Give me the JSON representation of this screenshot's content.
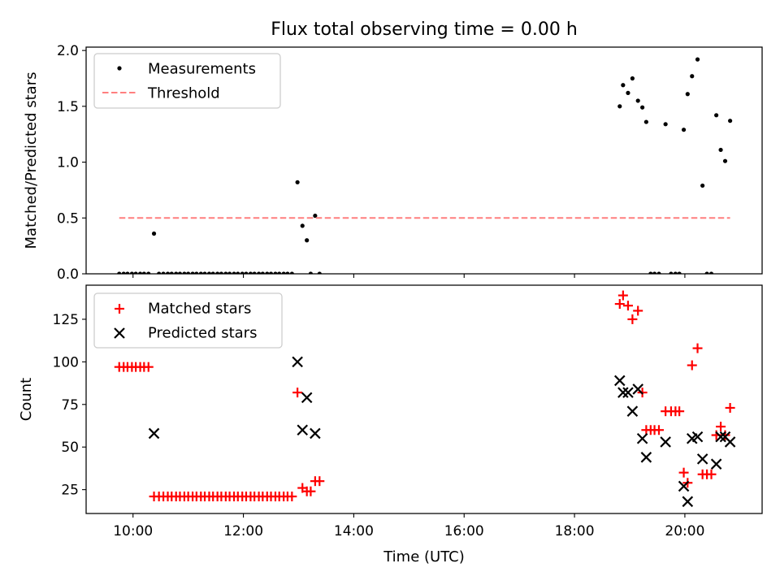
{
  "figure": {
    "title": "Flux total observing time = 0.00 h"
  },
  "chart_data": [
    {
      "type": "scatter",
      "ylabel": "Matched/Predicted stars",
      "xlabel": "",
      "xlim": [
        9.15,
        21.4
      ],
      "ylim": [
        0,
        2.03
      ],
      "yticks": [
        0.0,
        0.5,
        1.0,
        1.5,
        2.0
      ],
      "ytick_labels": [
        "0.0",
        "0.5",
        "1.0",
        "1.5",
        "2.0"
      ],
      "xticks": [
        10,
        12,
        14,
        16,
        18,
        20
      ],
      "legend": {
        "position": "top-left",
        "entries": [
          "Measurements",
          "Threshold"
        ]
      },
      "series": [
        {
          "name": "Measurements",
          "marker": "dot",
          "color": "#000000",
          "points": [
            [
              9.75,
              0
            ],
            [
              9.83,
              0
            ],
            [
              9.9,
              0
            ],
            [
              9.98,
              0
            ],
            [
              10.05,
              0
            ],
            [
              10.13,
              0
            ],
            [
              10.2,
              0
            ],
            [
              10.28,
              0
            ],
            [
              10.38,
              0.36
            ],
            [
              10.47,
              0
            ],
            [
              10.55,
              0
            ],
            [
              10.63,
              0
            ],
            [
              10.7,
              0
            ],
            [
              10.78,
              0
            ],
            [
              10.85,
              0
            ],
            [
              10.93,
              0
            ],
            [
              11.0,
              0
            ],
            [
              11.08,
              0
            ],
            [
              11.15,
              0
            ],
            [
              11.23,
              0
            ],
            [
              11.3,
              0
            ],
            [
              11.38,
              0
            ],
            [
              11.45,
              0
            ],
            [
              11.53,
              0
            ],
            [
              11.6,
              0
            ],
            [
              11.68,
              0
            ],
            [
              11.75,
              0
            ],
            [
              11.83,
              0
            ],
            [
              11.9,
              0
            ],
            [
              11.98,
              0
            ],
            [
              12.05,
              0
            ],
            [
              12.13,
              0
            ],
            [
              12.2,
              0
            ],
            [
              12.28,
              0
            ],
            [
              12.35,
              0
            ],
            [
              12.43,
              0
            ],
            [
              12.5,
              0
            ],
            [
              12.58,
              0
            ],
            [
              12.65,
              0
            ],
            [
              12.73,
              0
            ],
            [
              12.8,
              0
            ],
            [
              12.88,
              0
            ],
            [
              12.98,
              0.82
            ],
            [
              13.07,
              0.43
            ],
            [
              13.15,
              0.3
            ],
            [
              13.22,
              0
            ],
            [
              13.3,
              0.52
            ],
            [
              13.38,
              0
            ],
            [
              18.82,
              1.5
            ],
            [
              18.88,
              1.69
            ],
            [
              18.97,
              1.62
            ],
            [
              19.05,
              1.75
            ],
            [
              19.15,
              1.55
            ],
            [
              19.23,
              1.49
            ],
            [
              19.3,
              1.36
            ],
            [
              19.38,
              0
            ],
            [
              19.45,
              0
            ],
            [
              19.53,
              0
            ],
            [
              19.65,
              1.34
            ],
            [
              19.75,
              0
            ],
            [
              19.83,
              0
            ],
            [
              19.9,
              0
            ],
            [
              19.98,
              1.29
            ],
            [
              20.05,
              1.61
            ],
            [
              20.13,
              1.77
            ],
            [
              20.23,
              1.92
            ],
            [
              20.32,
              0.79
            ],
            [
              20.4,
              0
            ],
            [
              20.48,
              0
            ],
            [
              20.57,
              1.42
            ],
            [
              20.65,
              1.11
            ],
            [
              20.73,
              1.01
            ],
            [
              20.82,
              1.37
            ]
          ]
        },
        {
          "name": "Threshold",
          "style": "dashed",
          "color": "#ff7f7f",
          "points": [
            [
              9.75,
              0.5
            ],
            [
              20.82,
              0.5
            ]
          ]
        }
      ]
    },
    {
      "type": "scatter",
      "ylabel": "Count",
      "xlabel": "Time (UTC)",
      "xlim": [
        9.15,
        21.4
      ],
      "ylim": [
        11,
        145
      ],
      "yticks": [
        25,
        50,
        75,
        100,
        125
      ],
      "ytick_labels": [
        "25",
        "50",
        "75",
        "100",
        "125"
      ],
      "xticks": [
        10,
        12,
        14,
        16,
        18,
        20
      ],
      "xtick_labels": [
        "10:00",
        "12:00",
        "14:00",
        "16:00",
        "18:00",
        "20:00"
      ],
      "legend": {
        "position": "top-left",
        "entries": [
          "Matched stars",
          "Predicted stars"
        ]
      },
      "series": [
        {
          "name": "Matched stars",
          "marker": "plus",
          "color": "#ff0000",
          "points": [
            [
              9.75,
              97
            ],
            [
              9.83,
              97
            ],
            [
              9.9,
              97
            ],
            [
              9.98,
              97
            ],
            [
              10.05,
              97
            ],
            [
              10.13,
              97
            ],
            [
              10.2,
              97
            ],
            [
              10.28,
              97
            ],
            [
              10.38,
              21
            ],
            [
              10.47,
              21
            ],
            [
              10.55,
              21
            ],
            [
              10.63,
              21
            ],
            [
              10.7,
              21
            ],
            [
              10.78,
              21
            ],
            [
              10.85,
              21
            ],
            [
              10.93,
              21
            ],
            [
              11.0,
              21
            ],
            [
              11.08,
              21
            ],
            [
              11.15,
              21
            ],
            [
              11.23,
              21
            ],
            [
              11.3,
              21
            ],
            [
              11.38,
              21
            ],
            [
              11.45,
              21
            ],
            [
              11.53,
              21
            ],
            [
              11.6,
              21
            ],
            [
              11.68,
              21
            ],
            [
              11.75,
              21
            ],
            [
              11.83,
              21
            ],
            [
              11.9,
              21
            ],
            [
              11.98,
              21
            ],
            [
              12.05,
              21
            ],
            [
              12.13,
              21
            ],
            [
              12.2,
              21
            ],
            [
              12.28,
              21
            ],
            [
              12.35,
              21
            ],
            [
              12.43,
              21
            ],
            [
              12.5,
              21
            ],
            [
              12.58,
              21
            ],
            [
              12.65,
              21
            ],
            [
              12.73,
              21
            ],
            [
              12.8,
              21
            ],
            [
              12.88,
              21
            ],
            [
              12.98,
              82
            ],
            [
              13.07,
              26
            ],
            [
              13.15,
              24
            ],
            [
              13.22,
              24
            ],
            [
              13.3,
              30
            ],
            [
              13.38,
              30
            ],
            [
              18.82,
              134
            ],
            [
              18.88,
              139
            ],
            [
              18.97,
              133
            ],
            [
              19.05,
              125
            ],
            [
              19.15,
              130
            ],
            [
              19.23,
              82
            ],
            [
              19.3,
              60
            ],
            [
              19.38,
              60
            ],
            [
              19.45,
              60
            ],
            [
              19.53,
              60
            ],
            [
              19.65,
              71
            ],
            [
              19.75,
              71
            ],
            [
              19.83,
              71
            ],
            [
              19.9,
              71
            ],
            [
              19.98,
              35
            ],
            [
              20.05,
              29
            ],
            [
              20.13,
              98
            ],
            [
              20.23,
              108
            ],
            [
              20.32,
              34
            ],
            [
              20.4,
              34
            ],
            [
              20.48,
              34
            ],
            [
              20.57,
              57
            ],
            [
              20.65,
              62
            ],
            [
              20.73,
              57
            ],
            [
              20.82,
              73
            ]
          ]
        },
        {
          "name": "Predicted stars",
          "marker": "x",
          "color": "#000000",
          "points": [
            [
              10.38,
              58
            ],
            [
              12.98,
              100
            ],
            [
              13.07,
              60
            ],
            [
              13.15,
              79
            ],
            [
              13.3,
              58
            ],
            [
              18.82,
              89
            ],
            [
              18.88,
              82
            ],
            [
              18.97,
              82
            ],
            [
              19.05,
              71
            ],
            [
              19.15,
              84
            ],
            [
              19.23,
              55
            ],
            [
              19.3,
              44
            ],
            [
              19.65,
              53
            ],
            [
              19.98,
              27
            ],
            [
              20.05,
              18
            ],
            [
              20.13,
              55
            ],
            [
              20.23,
              56
            ],
            [
              20.32,
              43
            ],
            [
              20.57,
              40
            ],
            [
              20.65,
              56
            ],
            [
              20.73,
              56
            ],
            [
              20.82,
              53
            ]
          ]
        }
      ]
    }
  ]
}
